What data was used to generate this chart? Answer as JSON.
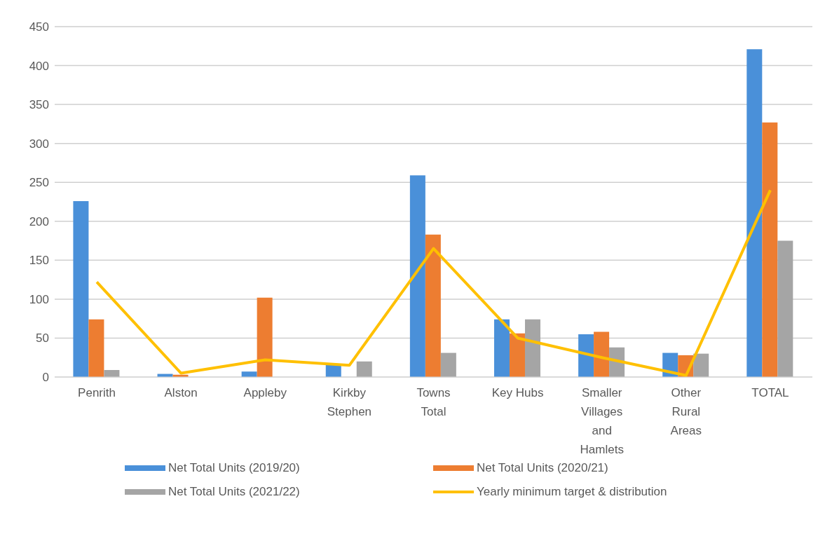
{
  "chart_data": {
    "type": "bar",
    "categories": [
      "Penrith",
      "Alston",
      "Appleby",
      "Kirkby Stephen",
      "Towns Total",
      "Key Hubs",
      "Smaller Villages and Hamlets",
      "Other Rural Areas",
      "TOTAL"
    ],
    "series": [
      {
        "name": "Net Total Units (2019/20)",
        "color": "#4a90d9",
        "values": [
          226,
          4,
          7,
          17,
          259,
          74,
          55,
          31,
          421
        ]
      },
      {
        "name": "Net Total Units (2020/21)",
        "color": "#ed7d31",
        "values": [
          74,
          3,
          102,
          null,
          183,
          56,
          58,
          28,
          327
        ]
      },
      {
        "name": "Net Total Units (2021/22)",
        "color": "#a5a5a5",
        "values": [
          9,
          0,
          0,
          20,
          31,
          74,
          38,
          30,
          175
        ]
      },
      {
        "name": "Yearly minimum target & distribution",
        "type": "line",
        "color": "#ffc000",
        "values": [
          122,
          5,
          22,
          15,
          165,
          50,
          25,
          2,
          240
        ]
      }
    ],
    "ylim": [
      0,
      450
    ],
    "yticks": [
      0,
      50,
      100,
      150,
      200,
      250,
      300,
      350,
      400,
      450
    ],
    "grid": "y",
    "legend": "bottom",
    "marker": "none"
  }
}
